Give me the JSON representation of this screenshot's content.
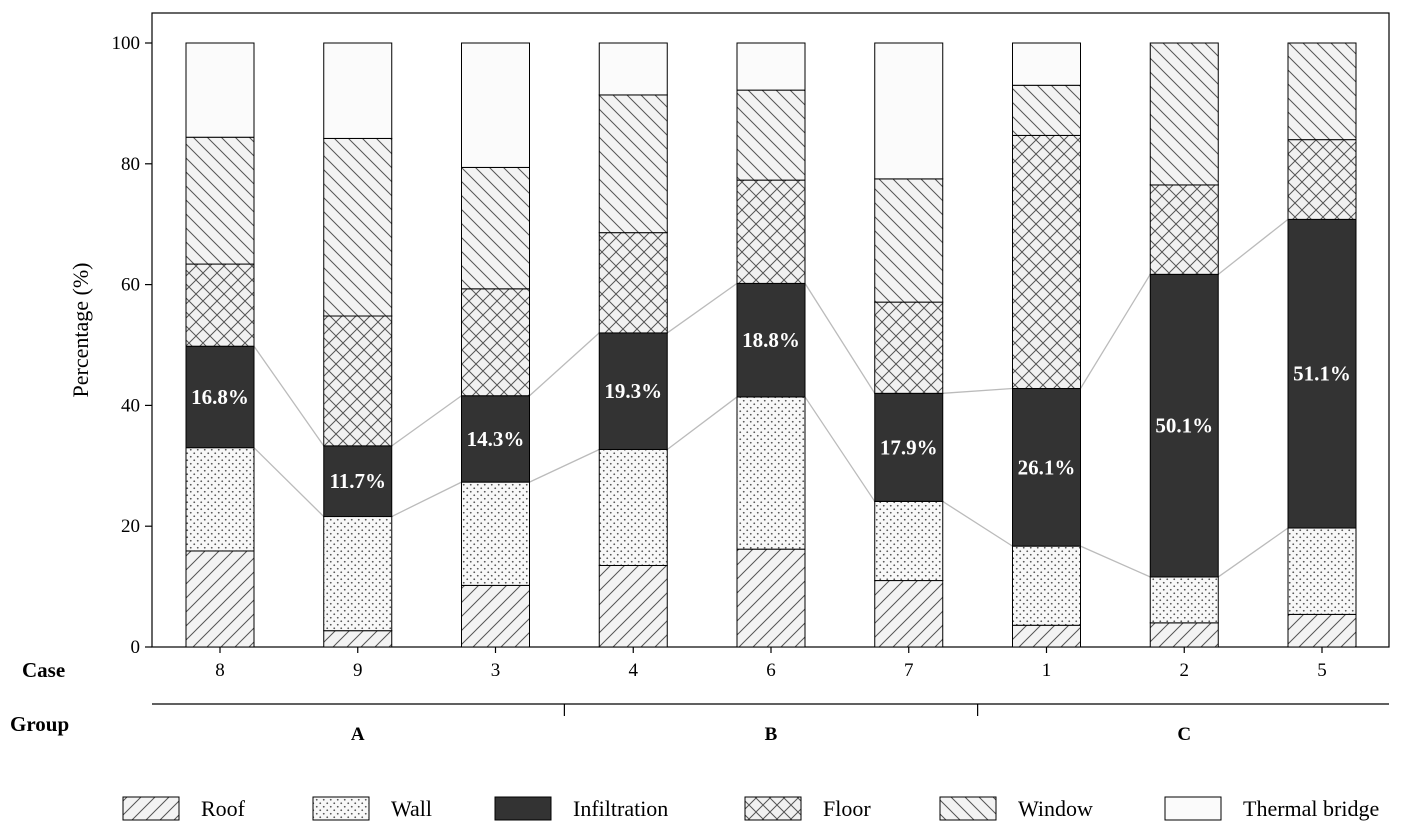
{
  "chart_data": {
    "type": "bar",
    "stacked": true,
    "categories": [
      "8",
      "9",
      "3",
      "4",
      "6",
      "7",
      "1",
      "2",
      "5"
    ],
    "x_axis_label": "Case",
    "ylabel": "Percentage (%)",
    "ylim": [
      0,
      100
    ],
    "yticks": [
      0,
      20,
      40,
      60,
      80,
      100
    ],
    "grid": false,
    "legend_position": "bottom",
    "group_axis_label": "Group",
    "groups": [
      {
        "label": "A",
        "cases": [
          "8",
          "9",
          "3"
        ]
      },
      {
        "label": "B",
        "cases": [
          "4",
          "6",
          "7"
        ]
      },
      {
        "label": "C",
        "cases": [
          "1",
          "2",
          "5"
        ]
      }
    ],
    "series": [
      {
        "name": "Roof",
        "pattern": "diagonal-hatch",
        "values": [
          15.9,
          2.7,
          10.2,
          13.5,
          16.2,
          11.0,
          3.6,
          4.0,
          5.4
        ]
      },
      {
        "name": "Wall",
        "pattern": "dots",
        "values": [
          17.1,
          18.9,
          17.1,
          19.2,
          25.2,
          13.1,
          13.1,
          7.6,
          14.3
        ]
      },
      {
        "name": "Infiltration",
        "pattern": "solid-dark",
        "values": [
          16.8,
          11.7,
          14.3,
          19.3,
          18.8,
          17.9,
          26.1,
          50.1,
          51.1
        ]
      },
      {
        "name": "Floor",
        "pattern": "cross-hatch",
        "values": [
          13.6,
          21.5,
          17.7,
          16.6,
          17.1,
          15.1,
          41.9,
          14.8,
          13.2
        ]
      },
      {
        "name": "Window",
        "pattern": "back-diagonal-hatch",
        "values": [
          21.0,
          29.4,
          20.1,
          22.8,
          14.9,
          20.4,
          8.3,
          23.5,
          16.0
        ]
      },
      {
        "name": "Thermal bridge",
        "pattern": "blank",
        "values": [
          15.6,
          15.8,
          20.6,
          8.6,
          7.8,
          22.5,
          7.0,
          0.0,
          0.0
        ]
      }
    ],
    "data_labels": [
      "16.8%",
      "11.7%",
      "14.3%",
      "19.3%",
      "18.8%",
      "17.9%",
      "26.1%",
      "50.1%",
      "51.1%"
    ],
    "colors": {
      "infiltration": "#333333",
      "thermal_bridge": "#fbfbfb",
      "outline": "#000000",
      "connector": "#bbbbbb"
    }
  }
}
